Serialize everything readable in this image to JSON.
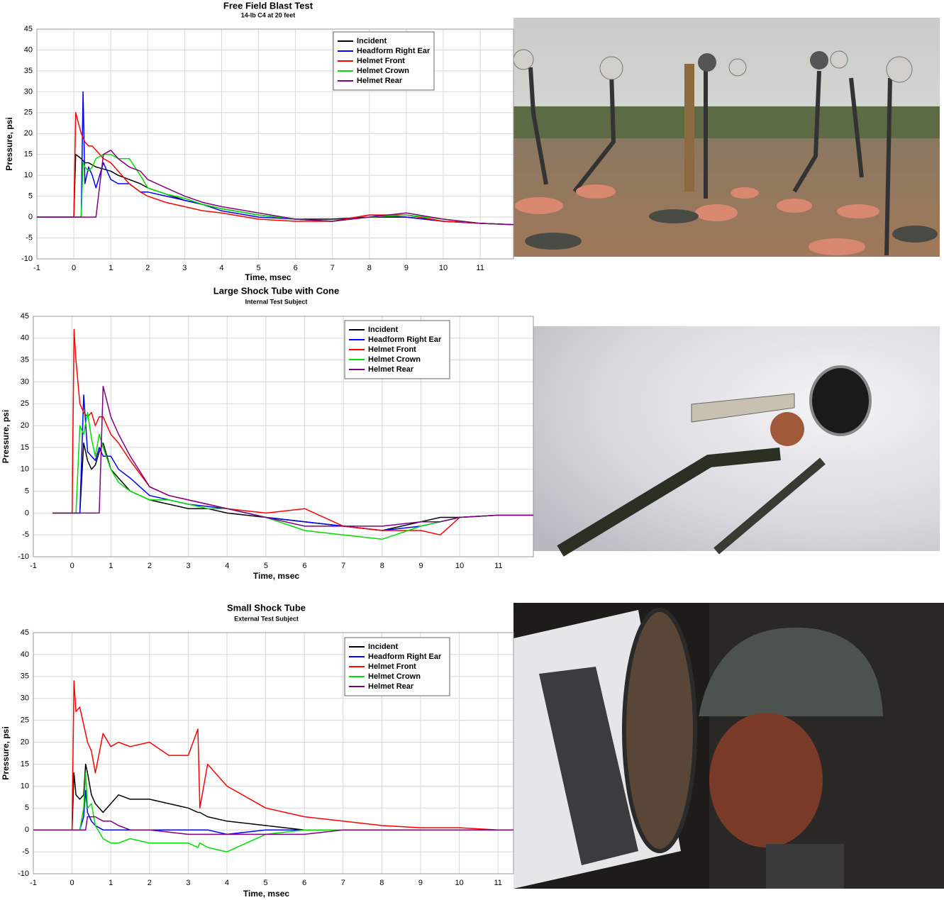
{
  "chart_data": [
    {
      "type": "line",
      "title": "Free Field Blast Test",
      "subtitle": "14-lb C4 at 20 feet",
      "x_label": "Time, msec",
      "y_label": "Pressure, psi",
      "x": [
        -1,
        0,
        0.05,
        0.2,
        0.25,
        0.3,
        0.4,
        0.5,
        0.6,
        0.8,
        1,
        1.2,
        1.5,
        1.8,
        2,
        2.5,
        3,
        3.5,
        4,
        5,
        6,
        7,
        8,
        9,
        10,
        11,
        11.9
      ],
      "series": [
        {
          "name": "Incident",
          "color": "#000000",
          "values": [
            0,
            0,
            15,
            14,
            13.5,
            13,
            13,
            12.5,
            12,
            11.5,
            11,
            10,
            9,
            8,
            7,
            5.5,
            4,
            3,
            2,
            0.5,
            -0.5,
            -0.5,
            0,
            0,
            -1,
            -1.5,
            -1.8
          ]
        },
        {
          "name": "Headform Right Ear",
          "color": "#0000ff",
          "values": [
            0,
            0,
            0,
            0,
            30,
            8,
            12,
            10,
            7,
            13,
            9,
            8,
            8,
            6,
            6,
            5,
            4,
            3,
            1.5,
            0,
            -0.5,
            -1,
            0.5,
            0,
            -1,
            -1.5,
            -1.8
          ]
        },
        {
          "name": "Helmet Front",
          "color": "#ff0000",
          "values": [
            0,
            0,
            25,
            20,
            19,
            18,
            17,
            17,
            16,
            14,
            13,
            11,
            8,
            6,
            5,
            3.5,
            2.5,
            1.5,
            1,
            -0.5,
            -1,
            -1,
            0.5,
            0.5,
            -1,
            -1.5,
            -1.8
          ]
        },
        {
          "name": "Helmet Crown",
          "color": "#00dd00",
          "values": [
            0,
            0,
            0,
            0,
            13,
            12,
            11,
            12,
            14,
            15,
            15,
            14,
            14,
            10,
            7,
            5.5,
            4.5,
            3,
            2,
            0.5,
            -0.5,
            -1,
            0,
            0.5,
            -0.5,
            -1.5,
            -1.8
          ]
        },
        {
          "name": "Helmet Rear",
          "color": "#800080",
          "values": [
            0,
            0,
            0,
            0,
            0,
            0,
            0,
            0,
            0,
            15,
            16,
            14,
            12,
            11,
            9,
            7,
            5,
            3.5,
            2.5,
            1,
            -0.5,
            -1,
            0,
            1,
            -0.5,
            -1.5,
            -1.8
          ]
        }
      ],
      "xlim": [
        -1,
        11.9
      ],
      "xticks": [
        -1,
        0,
        1,
        2,
        3,
        4,
        5,
        6,
        7,
        8,
        9,
        10,
        11
      ],
      "ylim": [
        -10,
        45
      ],
      "yticks": [
        -10,
        -5,
        0,
        5,
        10,
        15,
        20,
        25,
        30,
        35,
        40,
        45
      ],
      "grid": true,
      "legend": "upper right"
    },
    {
      "type": "line",
      "title": "Large Shock Tube with Cone",
      "subtitle": "Internal Test Subject",
      "x_label": "Time, msec",
      "y_label": "Pressure, psi",
      "x": [
        -0.5,
        0,
        0.05,
        0.1,
        0.2,
        0.3,
        0.4,
        0.5,
        0.6,
        0.7,
        0.8,
        1,
        1.2,
        1.5,
        2,
        2.5,
        3,
        3.5,
        4,
        5,
        6,
        7,
        8,
        9,
        9.5,
        10,
        11,
        11.9
      ],
      "series": [
        {
          "name": "Incident",
          "color": "#000000",
          "values": [
            0,
            0,
            0,
            0,
            0,
            16,
            12,
            10,
            11,
            14,
            16,
            10,
            8,
            5,
            3,
            2,
            1,
            1,
            0,
            -1,
            -2,
            -3,
            -4,
            -2,
            -1,
            -1,
            -0.5,
            -0.5
          ]
        },
        {
          "name": "Headform Right Ear",
          "color": "#0000ff",
          "values": [
            0,
            0,
            0,
            0,
            0,
            27,
            14,
            13,
            12,
            15,
            13,
            13,
            10,
            8,
            4,
            3,
            2,
            1.5,
            1,
            -1,
            -2,
            -3,
            -4,
            -3,
            -2,
            -1,
            -0.5,
            -0.5
          ]
        },
        {
          "name": "Helmet Front",
          "color": "#ff0000",
          "values": [
            0,
            0,
            42,
            35,
            25,
            23,
            22,
            23,
            20,
            22,
            22,
            18,
            16,
            12,
            6,
            4,
            3,
            2,
            1,
            0,
            1,
            -3,
            -4,
            -4,
            -5,
            -1,
            -0.5,
            -0.5
          ]
        },
        {
          "name": "Helmet Crown",
          "color": "#00dd00",
          "values": [
            0,
            0,
            0,
            0,
            20,
            18,
            23,
            17,
            13,
            18,
            15,
            10,
            7,
            5,
            3,
            3,
            2,
            1,
            1,
            -1,
            -4,
            -5,
            -6,
            -3,
            -2,
            -1,
            -0.5,
            -0.5
          ]
        },
        {
          "name": "Helmet Rear",
          "color": "#800080",
          "values": [
            0,
            0,
            0,
            0,
            0,
            0,
            0,
            0,
            0,
            0,
            29,
            22,
            18,
            13,
            6,
            4,
            3,
            2,
            1,
            -1,
            -3,
            -3,
            -3,
            -2,
            -2,
            -1,
            -0.5,
            -0.5
          ]
        }
      ],
      "xlim": [
        -1,
        11.9
      ],
      "xticks": [
        -1,
        0,
        1,
        2,
        3,
        4,
        5,
        6,
        7,
        8,
        9,
        10,
        11
      ],
      "ylim": [
        -10,
        45
      ],
      "yticks": [
        -10,
        -5,
        0,
        5,
        10,
        15,
        20,
        25,
        30,
        35,
        40,
        45
      ],
      "grid": true,
      "legend": "upper right"
    },
    {
      "type": "line",
      "title": "Small Shock Tube",
      "subtitle": "External Test Subject",
      "x_label": "Time, msec",
      "y_label": "Pressure, psi",
      "x": [
        -1,
        0,
        0.05,
        0.1,
        0.2,
        0.3,
        0.35,
        0.4,
        0.5,
        0.6,
        0.8,
        1,
        1.2,
        1.5,
        2,
        2.5,
        3,
        3.25,
        3.3,
        3.5,
        4,
        5,
        6,
        7,
        8,
        9,
        10,
        11,
        11.4
      ],
      "series": [
        {
          "name": "Incident",
          "color": "#000000",
          "values": [
            0,
            0,
            13,
            8,
            7,
            8,
            15,
            13,
            8,
            6,
            4,
            6,
            8,
            7,
            7,
            6,
            5,
            4,
            4,
            3,
            2,
            1,
            0,
            0,
            0,
            0,
            0,
            0,
            0
          ]
        },
        {
          "name": "Headform Right Ear",
          "color": "#0000ff",
          "values": [
            0,
            0,
            0,
            0,
            0,
            3,
            9,
            4,
            2,
            1,
            0,
            0,
            0,
            0,
            0,
            0,
            0,
            0,
            0,
            0,
            -1,
            0,
            0,
            0,
            0,
            0,
            0,
            0,
            0
          ]
        },
        {
          "name": "Helmet Front",
          "color": "#ff0000",
          "values": [
            0,
            0,
            34,
            27,
            28,
            24,
            22,
            20,
            18,
            13,
            22,
            19,
            20,
            19,
            20,
            17,
            17,
            23,
            5,
            15,
            10,
            5,
            3,
            2,
            1,
            0.5,
            0.5,
            0,
            0
          ]
        },
        {
          "name": "Helmet Crown",
          "color": "#00dd00",
          "values": [
            0,
            0,
            0,
            0,
            0,
            5,
            13,
            5,
            6,
            1,
            -2,
            -3,
            -3,
            -2,
            -3,
            -3,
            -3,
            -4,
            -3,
            -4,
            -5,
            -1,
            0,
            0,
            0,
            0,
            0,
            0,
            0
          ]
        },
        {
          "name": "Helmet Rear",
          "color": "#800080",
          "values": [
            0,
            0,
            0,
            0,
            0,
            0,
            0,
            3,
            3,
            3,
            2,
            2,
            1,
            0,
            0,
            -0.5,
            -1,
            -1,
            -1,
            -1,
            -1,
            -1,
            -1,
            0,
            0,
            0,
            0,
            0,
            0
          ]
        }
      ],
      "xlim": [
        -1,
        11.4
      ],
      "xticks": [
        -1,
        0,
        1,
        2,
        3,
        4,
        5,
        6,
        7,
        8,
        9,
        10,
        11
      ],
      "ylim": [
        -10,
        45
      ],
      "yticks": [
        -10,
        -5,
        0,
        5,
        10,
        15,
        20,
        25,
        30,
        35,
        40,
        45
      ],
      "grid": true,
      "legend": "upper right"
    }
  ]
}
